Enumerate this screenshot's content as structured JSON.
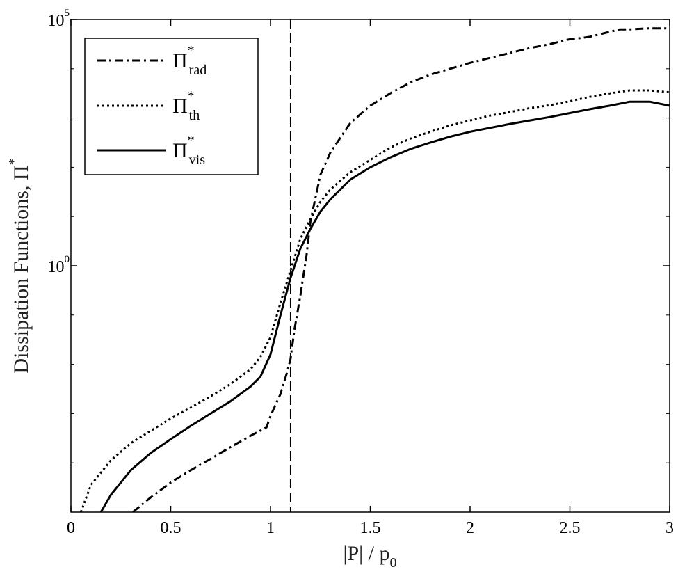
{
  "chart_data": {
    "type": "line",
    "title": "",
    "xlabel": "|P| / p",
    "xlabel_subscript": "0",
    "ylabel": "Dissipation Functions, Π",
    "ylabel_superscript": "*",
    "x_scale": "linear",
    "y_scale": "log",
    "xlim": [
      0,
      3
    ],
    "ylim_log10": [
      -5,
      5
    ],
    "x_ticks": [
      0,
      0.5,
      1,
      1.5,
      2,
      2.5,
      3
    ],
    "x_tick_labels": [
      "0",
      "0.5",
      "1",
      "1.5",
      "2",
      "2.5",
      "3"
    ],
    "y_ticks_log10": [
      0,
      5
    ],
    "y_tick_labels": [
      {
        "base": "10",
        "exp": "0"
      },
      {
        "base": "10",
        "exp": "5"
      }
    ],
    "vertical_reference_line": {
      "x": 1.1,
      "style": "dashed"
    },
    "legend_position": "top-left",
    "series": [
      {
        "name": "Π",
        "sup": "*",
        "sub": "rad",
        "style": "dashdot",
        "x": [
          0.31,
          0.4,
          0.5,
          0.6,
          0.7,
          0.8,
          0.9,
          0.98,
          1.0,
          1.05,
          1.08,
          1.1,
          1.12,
          1.15,
          1.18,
          1.2,
          1.25,
          1.3,
          1.4,
          1.5,
          1.6,
          1.7,
          1.8,
          1.9,
          2.0,
          2.1,
          2.2,
          2.3,
          2.4,
          2.5,
          2.55,
          2.6,
          2.7,
          2.75,
          2.8,
          2.9,
          3.0
        ],
        "log10_y": [
          -5.0,
          -4.7,
          -4.4,
          -4.15,
          -3.92,
          -3.68,
          -3.45,
          -3.28,
          -3.05,
          -2.6,
          -2.2,
          -1.9,
          -1.3,
          -0.6,
          0.2,
          0.9,
          1.85,
          2.3,
          2.9,
          3.25,
          3.5,
          3.72,
          3.88,
          4.0,
          4.12,
          4.22,
          4.32,
          4.42,
          4.5,
          4.6,
          4.62,
          4.65,
          4.75,
          4.8,
          4.8,
          4.82,
          4.82
        ]
      },
      {
        "name": "Π",
        "sup": "*",
        "sub": "th",
        "style": "dotted",
        "x": [
          0.05,
          0.1,
          0.2,
          0.3,
          0.4,
          0.5,
          0.6,
          0.7,
          0.8,
          0.9,
          0.95,
          1.0,
          1.05,
          1.1,
          1.15,
          1.2,
          1.25,
          1.3,
          1.4,
          1.5,
          1.6,
          1.7,
          1.8,
          1.9,
          2.0,
          2.1,
          2.2,
          2.3,
          2.4,
          2.5,
          2.6,
          2.7,
          2.8,
          2.9,
          3.0
        ],
        "log10_y": [
          -5.0,
          -4.45,
          -3.95,
          -3.6,
          -3.35,
          -3.1,
          -2.88,
          -2.65,
          -2.4,
          -2.1,
          -1.85,
          -1.45,
          -0.75,
          -0.1,
          0.55,
          0.95,
          1.3,
          1.55,
          1.9,
          2.15,
          2.4,
          2.58,
          2.72,
          2.85,
          2.95,
          3.05,
          3.12,
          3.2,
          3.26,
          3.34,
          3.43,
          3.5,
          3.56,
          3.56,
          3.52
        ]
      },
      {
        "name": "Π",
        "sup": "*",
        "sub": "vis",
        "style": "solid",
        "x": [
          0.15,
          0.2,
          0.3,
          0.4,
          0.5,
          0.6,
          0.7,
          0.8,
          0.9,
          0.95,
          1.0,
          1.05,
          1.1,
          1.15,
          1.2,
          1.25,
          1.3,
          1.4,
          1.5,
          1.6,
          1.7,
          1.8,
          1.9,
          2.0,
          2.1,
          2.2,
          2.3,
          2.4,
          2.5,
          2.6,
          2.7,
          2.8,
          2.9,
          3.0
        ],
        "log10_y": [
          -5.0,
          -4.65,
          -4.15,
          -3.8,
          -3.52,
          -3.25,
          -3.0,
          -2.75,
          -2.45,
          -2.25,
          -1.8,
          -1.0,
          -0.25,
          0.35,
          0.75,
          1.1,
          1.35,
          1.75,
          2.0,
          2.2,
          2.37,
          2.5,
          2.62,
          2.72,
          2.8,
          2.88,
          2.95,
          3.02,
          3.1,
          3.18,
          3.25,
          3.33,
          3.33,
          3.25
        ]
      }
    ]
  }
}
